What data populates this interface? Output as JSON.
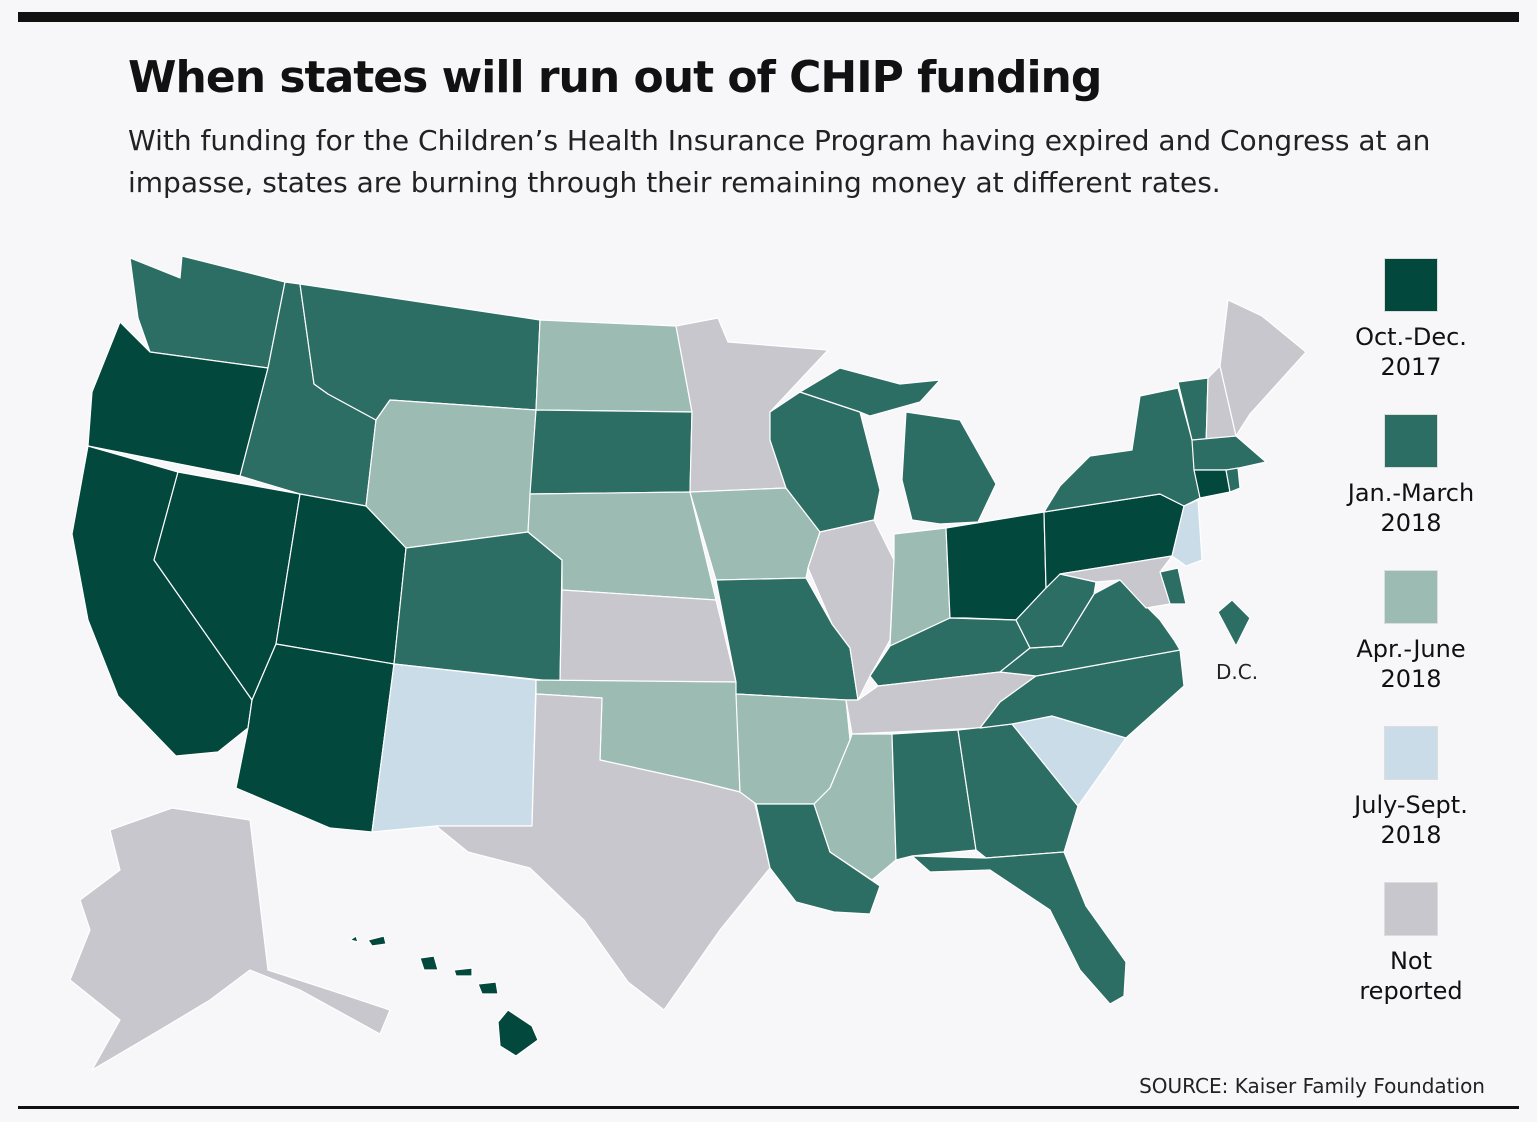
{
  "title": "When states will run out of CHIP funding",
  "subtitle": "With funding for the Children’s Health Insurance Program having expired and Congress at an impasse, states are burning through their remaining money at different rates.",
  "legend": [
    {
      "key": "oct_dec_2017",
      "label": "Oct.-Dec.\n2017",
      "color": "#02483d"
    },
    {
      "key": "jan_mar_2018",
      "label": "Jan.-March\n2018",
      "color": "#2c6e64"
    },
    {
      "key": "apr_jun_2018",
      "label": "Apr.-June\n2018",
      "color": "#9bbbb3"
    },
    {
      "key": "jul_sep_2018",
      "label": "July-Sept.\n2018",
      "color": "#c9dce8"
    },
    {
      "key": "not_reported",
      "label": "Not\nreported",
      "color": "#c7c7cd"
    }
  ],
  "dc_label": "D.C.",
  "source": "SOURCE: Kaiser Family Foundation",
  "states": {
    "WA": "jan_mar_2018",
    "OR": "oct_dec_2017",
    "CA": "oct_dec_2017",
    "NV": "oct_dec_2017",
    "ID": "jan_mar_2018",
    "MT": "jan_mar_2018",
    "WY": "apr_jun_2018",
    "UT": "oct_dec_2017",
    "AZ": "oct_dec_2017",
    "CO": "jan_mar_2018",
    "NM": "jul_sep_2018",
    "ND": "apr_jun_2018",
    "SD": "jan_mar_2018",
    "NE": "apr_jun_2018",
    "KS": "not_reported",
    "OK": "apr_jun_2018",
    "TX": "not_reported",
    "MN": "not_reported",
    "IA": "apr_jun_2018",
    "MO": "jan_mar_2018",
    "AR": "apr_jun_2018",
    "LA": "jan_mar_2018",
    "WI": "jan_mar_2018",
    "IL": "not_reported",
    "MI": "jan_mar_2018",
    "IN": "apr_jun_2018",
    "OH": "oct_dec_2017",
    "KY": "jan_mar_2018",
    "TN": "not_reported",
    "MS": "apr_jun_2018",
    "AL": "jan_mar_2018",
    "GA": "jan_mar_2018",
    "FL": "jan_mar_2018",
    "SC": "jul_sep_2018",
    "NC": "jan_mar_2018",
    "VA": "jan_mar_2018",
    "WV": "jan_mar_2018",
    "PA": "oct_dec_2017",
    "NY": "jan_mar_2018",
    "VT": "jan_mar_2018",
    "NH": "not_reported",
    "ME": "not_reported",
    "MA": "jan_mar_2018",
    "CT": "oct_dec_2017",
    "RI": "jan_mar_2018",
    "NJ": "jul_sep_2018",
    "DE": "jan_mar_2018",
    "MD": "not_reported",
    "DC": "jan_mar_2018",
    "AK": "not_reported",
    "HI": "oct_dec_2017"
  }
}
